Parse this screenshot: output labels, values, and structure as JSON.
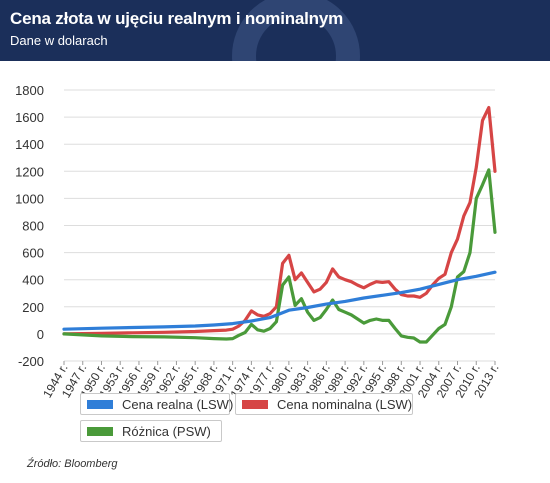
{
  "header": {
    "title": "Cena złota w ujęciu realnym i nominalnym",
    "subtitle": "Dane w dolarach",
    "background": "#1b2f5a"
  },
  "source": "Źródło: Bloomberg",
  "chart_data": {
    "type": "line",
    "title": "Cena złota w ujęciu realnym i nominalnym",
    "subtitle": "Dane w dolarach",
    "x_tick_labels": [
      "1944 r.",
      "1947 r.",
      "1950 r.",
      "1953 r.",
      "1956 r.",
      "1959 r.",
      "1962 r.",
      "1965 r.",
      "1968 r.",
      "1971 r.",
      "1974 r.",
      "1977 r.",
      "1980 r.",
      "1983 r.",
      "1986 r.",
      "1989 r.",
      "1992 r.",
      "1995 r.",
      "1998 r.",
      "2001 r.",
      "2004 r.",
      "2007 r.",
      "2010 r.",
      "2013 r."
    ],
    "xlim": [
      1944,
      2013
    ],
    "ylim": [
      -200,
      1800
    ],
    "y_ticks": [
      -200,
      0,
      200,
      400,
      600,
      800,
      1000,
      1200,
      1400,
      1600,
      1800
    ],
    "y_tick_labels": [
      "-200",
      "0",
      "200",
      "400",
      "600",
      "800",
      "1000",
      "1200",
      "1400",
      "1600",
      "1800"
    ],
    "grid": true,
    "legend_position": "bottom",
    "series": [
      {
        "name": "Cena realna (LSW)",
        "color": "#2f7ed8",
        "x": [
          1944,
          1950,
          1955,
          1960,
          1965,
          1968,
          1971,
          1974,
          1977,
          1980,
          1983,
          1986,
          1989,
          1992,
          1995,
          1998,
          2001,
          2004,
          2007,
          2010,
          2013
        ],
        "y": [
          35,
          42,
          47,
          52,
          58,
          66,
          76,
          95,
          120,
          175,
          195,
          220,
          240,
          265,
          285,
          305,
          330,
          365,
          400,
          425,
          455
        ]
      },
      {
        "name": "Cena nominalna (LSW)",
        "color": "#d64545",
        "x": [
          1944,
          1950,
          1955,
          1960,
          1965,
          1968,
          1970,
          1971,
          1972,
          1973,
          1974,
          1975,
          1976,
          1977,
          1978,
          1979,
          1980,
          1981,
          1982,
          1983,
          1984,
          1985,
          1986,
          1987,
          1988,
          1989,
          1990,
          1991,
          1992,
          1993,
          1994,
          1995,
          1996,
          1997,
          1998,
          1999,
          2000,
          2001,
          2002,
          2003,
          2004,
          2005,
          2006,
          2007,
          2008,
          2009,
          2010,
          2011,
          2012,
          2013
        ],
        "y": [
          0,
          4,
          8,
          12,
          18,
          24,
          28,
          35,
          58,
          100,
          170,
          140,
          130,
          150,
          200,
          520,
          580,
          400,
          450,
          380,
          310,
          330,
          380,
          480,
          420,
          400,
          385,
          360,
          340,
          365,
          385,
          380,
          385,
          330,
          290,
          280,
          280,
          270,
          300,
          360,
          410,
          440,
          600,
          700,
          870,
          970,
          1230,
          1575,
          1670,
          1200
        ]
      },
      {
        "name": "Różnica (PSW)",
        "color": "#4a9a3a",
        "x": [
          1944,
          1950,
          1955,
          1960,
          1965,
          1968,
          1970,
          1971,
          1972,
          1973,
          1974,
          1975,
          1976,
          1977,
          1978,
          1979,
          1980,
          1981,
          1982,
          1983,
          1984,
          1985,
          1986,
          1987,
          1988,
          1989,
          1990,
          1991,
          1992,
          1993,
          1994,
          1995,
          1996,
          1997,
          1998,
          1999,
          2000,
          2001,
          2002,
          2003,
          2004,
          2005,
          2006,
          2007,
          2008,
          2009,
          2010,
          2011,
          2012,
          2013
        ],
        "y": [
          0,
          -15,
          -20,
          -22,
          -28,
          -35,
          -38,
          -35,
          -10,
          10,
          70,
          30,
          20,
          40,
          90,
          360,
          420,
          210,
          260,
          160,
          100,
          120,
          180,
          250,
          180,
          160,
          140,
          110,
          80,
          100,
          110,
          100,
          100,
          40,
          -15,
          -25,
          -30,
          -60,
          -60,
          -10,
          40,
          70,
          200,
          420,
          460,
          600,
          1000,
          1100,
          1210,
          750
        ]
      }
    ]
  }
}
